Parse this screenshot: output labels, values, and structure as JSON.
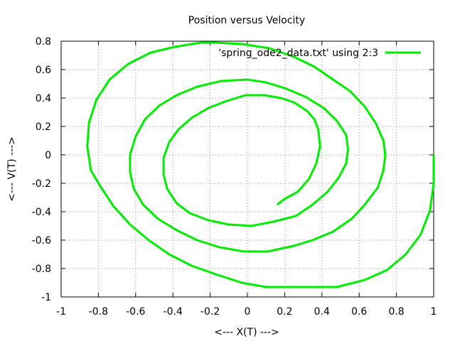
{
  "chart_data": {
    "type": "line",
    "title": "Position versus Velocity",
    "xlabel": "<--- X(T) --->",
    "ylabel": "<--- V(T) --->",
    "xlim": [
      -1,
      1
    ],
    "ylim": [
      -1,
      0.8
    ],
    "xticks": [
      -1,
      -0.8,
      -0.6,
      -0.4,
      -0.2,
      0,
      0.2,
      0.4,
      0.6,
      0.8,
      1
    ],
    "xtick_labels": [
      "-1",
      "-0.8",
      "-0.6",
      "-0.4",
      "-0.2",
      "0",
      "0.2",
      "0.4",
      "0.6",
      "0.8",
      "1"
    ],
    "yticks": [
      -1,
      -0.8,
      -0.6,
      -0.4,
      -0.2,
      0,
      0.2,
      0.4,
      0.6,
      0.8
    ],
    "ytick_labels": [
      "-1",
      "-0.8",
      "-0.6",
      "-0.4",
      "-0.2",
      "0",
      "0.2",
      "0.4",
      "0.6",
      "0.8"
    ],
    "grid": true,
    "legend_position": "top-right",
    "series": [
      {
        "name": "'spring_ode2_data.txt' using 2:3",
        "color": "#00ee00",
        "x": [
          1.0,
          1.0,
          0.98,
          0.93,
          0.85,
          0.75,
          0.63,
          0.48,
          0.28,
          0.1,
          -0.03,
          -0.17,
          -0.3,
          -0.42,
          -0.53,
          -0.63,
          -0.72,
          -0.79,
          -0.84,
          -0.86,
          -0.85,
          -0.81,
          -0.74,
          -0.64,
          -0.52,
          -0.39,
          -0.25,
          -0.17,
          -0.03,
          0.12,
          0.25,
          0.36,
          0.46,
          0.55,
          0.63,
          0.69,
          0.73,
          0.74,
          0.73,
          0.7,
          0.63,
          0.56,
          0.46,
          0.35,
          0.25,
          0.11,
          -0.02,
          -0.15,
          -0.27,
          -0.38,
          -0.48,
          -0.56,
          -0.61,
          -0.63,
          -0.63,
          -0.6,
          -0.55,
          -0.47,
          -0.38,
          -0.27,
          -0.14,
          0.0,
          0.1,
          0.2,
          0.31,
          0.41,
          0.48,
          0.53,
          0.54,
          0.53,
          0.49,
          0.43,
          0.35,
          0.26,
          0.14,
          0.02,
          -0.1,
          -0.21,
          -0.31,
          -0.38,
          -0.43,
          -0.45,
          -0.45,
          -0.42,
          -0.37,
          -0.3,
          -0.21,
          -0.11,
          -0.01,
          0.09,
          0.18,
          0.25,
          0.32,
          0.36,
          0.38,
          0.39,
          0.37,
          0.33,
          0.27,
          0.2,
          0.16
        ],
        "y": [
          0.0,
          -0.2,
          -0.39,
          -0.56,
          -0.7,
          -0.81,
          -0.88,
          -0.93,
          -0.93,
          -0.93,
          -0.9,
          -0.84,
          -0.78,
          -0.7,
          -0.6,
          -0.49,
          -0.36,
          -0.22,
          -0.11,
          0.06,
          0.23,
          0.39,
          0.53,
          0.64,
          0.72,
          0.76,
          0.79,
          0.79,
          0.78,
          0.75,
          0.69,
          0.62,
          0.53,
          0.45,
          0.34,
          0.22,
          0.1,
          0.0,
          -0.11,
          -0.23,
          -0.35,
          -0.45,
          -0.54,
          -0.6,
          -0.64,
          -0.68,
          -0.68,
          -0.65,
          -0.6,
          -0.53,
          -0.45,
          -0.35,
          -0.24,
          -0.12,
          0.0,
          0.13,
          0.25,
          0.35,
          0.42,
          0.48,
          0.52,
          0.53,
          0.51,
          0.47,
          0.41,
          0.33,
          0.24,
          0.14,
          0.04,
          -0.06,
          -0.16,
          -0.26,
          -0.35,
          -0.43,
          -0.47,
          -0.5,
          -0.49,
          -0.46,
          -0.41,
          -0.34,
          -0.24,
          -0.14,
          -0.02,
          0.09,
          0.18,
          0.26,
          0.33,
          0.38,
          0.42,
          0.42,
          0.4,
          0.37,
          0.31,
          0.25,
          0.18,
          0.06,
          -0.06,
          -0.17,
          -0.26,
          -0.31,
          -0.35
        ]
      }
    ]
  }
}
